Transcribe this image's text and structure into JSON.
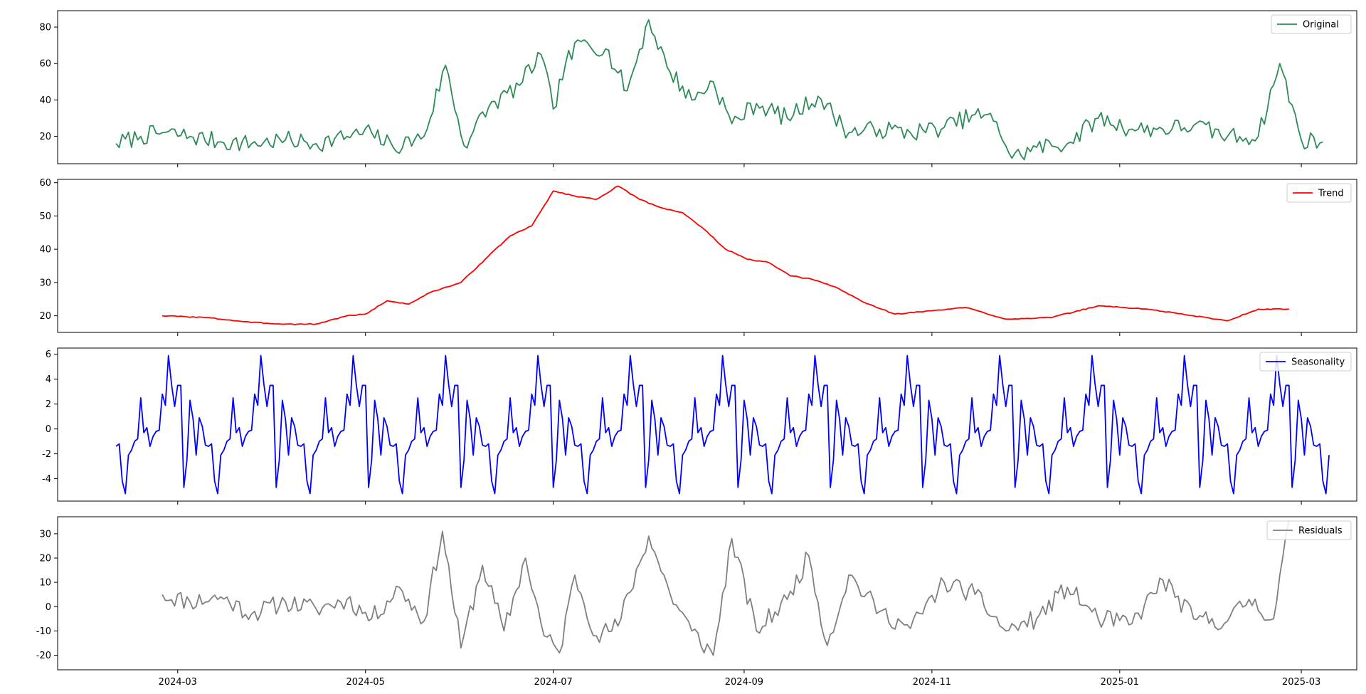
{
  "chart_data": {
    "type": "line",
    "layout": "4 vertically stacked panels sharing the x axis (seasonal decomposition)",
    "x_axis": {
      "type": "date",
      "range": [
        "2024-01-22",
        "2025-03-19"
      ],
      "ticks": [
        "2024-03-01",
        "2024-05-01",
        "2024-07-01",
        "2024-09-01",
        "2024-11-01",
        "2025-01-01",
        "2025-03-01"
      ],
      "tick_labels": [
        "2024-03",
        "2024-05",
        "2024-07",
        "2024-09",
        "2024-11",
        "2025-01",
        "2025-03"
      ]
    },
    "grid": false,
    "legend_position": "top-right",
    "panels": [
      {
        "id": "original",
        "legend": "Original",
        "color": "#2e8b57",
        "ylim": [
          5,
          89
        ],
        "yticks": [
          20,
          40,
          60,
          80
        ],
        "x": [
          "2024-02-10",
          "2024-02-18",
          "2024-02-25",
          "2024-03-05",
          "2024-03-15",
          "2024-03-25",
          "2024-04-05",
          "2024-04-15",
          "2024-04-25",
          "2024-05-03",
          "2024-05-10",
          "2024-05-20",
          "2024-05-27",
          "2024-06-02",
          "2024-06-10",
          "2024-06-20",
          "2024-06-27",
          "2024-07-01",
          "2024-07-05",
          "2024-07-10",
          "2024-07-18",
          "2024-07-25",
          "2024-08-01",
          "2024-08-07",
          "2024-08-15",
          "2024-08-22",
          "2024-08-28",
          "2024-09-05",
          "2024-09-15",
          "2024-09-25",
          "2024-10-05",
          "2024-10-15",
          "2024-10-25",
          "2024-11-05",
          "2024-11-15",
          "2024-11-22",
          "2024-11-27",
          "2024-12-05",
          "2024-12-15",
          "2024-12-25",
          "2025-01-05",
          "2025-01-15",
          "2025-01-25",
          "2025-02-05",
          "2025-02-15",
          "2025-02-22",
          "2025-03-01",
          "2025-03-08"
        ],
        "values": [
          16,
          20,
          22,
          20,
          17,
          16,
          18,
          16,
          20,
          22,
          14,
          20,
          59,
          15,
          36,
          48,
          65,
          35,
          60,
          72,
          68,
          45,
          84,
          58,
          40,
          50,
          27,
          38,
          30,
          42,
          22,
          24,
          22,
          25,
          32,
          28,
          8,
          14,
          16,
          30,
          24,
          24,
          26,
          20,
          20,
          60,
          18,
          17
        ]
      },
      {
        "id": "trend",
        "legend": "Trend",
        "color": "#ff0000",
        "ylim": [
          15,
          61
        ],
        "yticks": [
          20,
          30,
          40,
          50,
          60
        ],
        "x": [
          "2024-02-25",
          "2024-03-10",
          "2024-03-25",
          "2024-04-05",
          "2024-04-15",
          "2024-04-25",
          "2024-05-01",
          "2024-05-08",
          "2024-05-15",
          "2024-05-22",
          "2024-06-01",
          "2024-06-10",
          "2024-06-17",
          "2024-06-24",
          "2024-07-01",
          "2024-07-08",
          "2024-07-15",
          "2024-07-22",
          "2024-07-29",
          "2024-08-05",
          "2024-08-12",
          "2024-08-19",
          "2024-08-26",
          "2024-09-02",
          "2024-09-09",
          "2024-09-16",
          "2024-09-23",
          "2024-10-01",
          "2024-10-10",
          "2024-10-20",
          "2024-11-01",
          "2024-11-12",
          "2024-11-25",
          "2024-12-10",
          "2024-12-25",
          "2025-01-10",
          "2025-01-25",
          "2025-02-05",
          "2025-02-15",
          "2025-02-25"
        ],
        "values": [
          20,
          19.5,
          18,
          17.5,
          17.5,
          20,
          20.5,
          24.5,
          23.5,
          27,
          30,
          38,
          44,
          47,
          57.5,
          56,
          55,
          59,
          55,
          52.5,
          51,
          46,
          40,
          37,
          36,
          32,
          31,
          28.5,
          24,
          20.5,
          21.5,
          22.5,
          19,
          19.5,
          23,
          22,
          20,
          18.5,
          22,
          22
        ]
      },
      {
        "id": "seasonality",
        "legend": "Seasonality",
        "color": "#0000ff",
        "ylim": [
          -5.8,
          6.5
        ],
        "yticks": [
          -4,
          -2,
          0,
          2,
          4,
          6
        ],
        "period_days": 30,
        "start": "2024-02-10",
        "end": "2025-03-10",
        "cycle_values": [
          -1.4,
          -1.2,
          -4.2,
          -5.2,
          -2.1,
          -1.7,
          -1.0,
          -0.8,
          2.5,
          -0.3,
          0.1,
          -1.4,
          -0.6,
          -0.2,
          -0.1,
          2.8,
          1.9,
          5.9,
          3.6,
          1.8,
          3.5,
          3.5,
          -4.7,
          -2.5,
          2.3,
          0.8,
          -2.1,
          0.9,
          0.2,
          -1.3
        ]
      },
      {
        "id": "residuals",
        "legend": "Residuals",
        "color": "#808080",
        "ylim": [
          -26,
          37
        ],
        "yticks": [
          -20,
          -10,
          0,
          10,
          20,
          30
        ],
        "x": [
          "2024-02-25",
          "2024-03-05",
          "2024-03-15",
          "2024-03-25",
          "2024-04-05",
          "2024-04-15",
          "2024-04-25",
          "2024-05-03",
          "2024-05-12",
          "2024-05-20",
          "2024-05-26",
          "2024-06-01",
          "2024-06-08",
          "2024-06-15",
          "2024-06-22",
          "2024-06-28",
          "2024-07-03",
          "2024-07-08",
          "2024-07-15",
          "2024-07-22",
          "2024-08-01",
          "2024-08-08",
          "2024-08-15",
          "2024-08-22",
          "2024-08-28",
          "2024-09-05",
          "2024-09-15",
          "2024-09-22",
          "2024-09-28",
          "2024-10-05",
          "2024-10-15",
          "2024-10-25",
          "2024-11-05",
          "2024-11-15",
          "2024-11-25",
          "2024-12-05",
          "2024-12-15",
          "2024-12-25",
          "2025-01-05",
          "2025-01-15",
          "2025-01-25",
          "2025-02-05",
          "2025-02-12",
          "2025-02-20",
          "2025-02-25"
        ],
        "values": [
          5,
          2,
          4,
          -3,
          2,
          -1,
          3,
          -5,
          8,
          -6,
          31,
          -17,
          17,
          -10,
          20,
          -12,
          -19,
          13,
          -12,
          -8,
          29,
          5,
          -10,
          -20,
          28,
          -10,
          3,
          21,
          -16,
          13,
          -2,
          -9,
          10,
          5,
          -10,
          -5,
          8,
          -5,
          -7,
          11,
          -5,
          -6,
          3,
          -5,
          35
        ]
      }
    ]
  }
}
